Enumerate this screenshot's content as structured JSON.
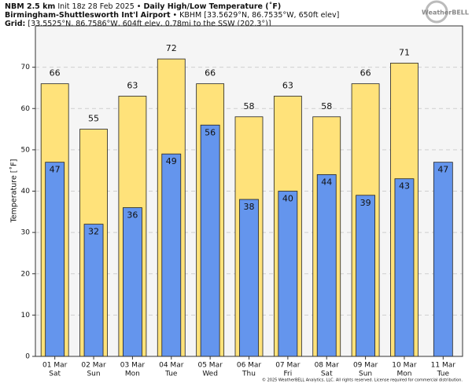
{
  "header": {
    "model": "NBM 2.5 km",
    "init": "Init 18z 28 Feb 2025 •",
    "product": "Daily High/Low Temperature (˚F)",
    "station": "Birmingham-Shuttlesworth Int'l Airport",
    "station_info": "• KBHM [33.5629°N, 86.7535°W, 650ft elev]",
    "grid_label": "Grid:",
    "grid_info": "[33.5525°N, 86.7586°W, 604ft elev, 0.78mi to the SSW (202.3°)]"
  },
  "logo": "WeatherBELL",
  "footer": "© 2025 WeatherBELL Analytics, LLC. All rights reserved. License required for commercial distribution.",
  "chart_data": {
    "type": "bar",
    "ylabel": "Temperature [˚F]",
    "categories": [
      "01 Mar",
      "02 Mar",
      "03 Mar",
      "04 Mar",
      "05 Mar",
      "06 Mar",
      "07 Mar",
      "08 Mar",
      "09 Mar",
      "10 Mar",
      "11 Mar"
    ],
    "days": [
      "Sat",
      "Sun",
      "Mon",
      "Tue",
      "Wed",
      "Thu",
      "Fri",
      "Sat",
      "Sun",
      "Mon",
      "Tue"
    ],
    "series": [
      {
        "color": "#ffe27a",
        "values": [
          66,
          55,
          63,
          72,
          66,
          58,
          63,
          58,
          66,
          71,
          null
        ]
      },
      {
        "color": "#6495ed",
        "values": [
          47,
          32,
          36,
          49,
          56,
          38,
          40,
          44,
          39,
          43,
          47
        ]
      }
    ],
    "ylim": [
      0,
      80
    ],
    "yticks": [
      0,
      10,
      20,
      30,
      40,
      50,
      60,
      70
    ],
    "grid": true
  }
}
